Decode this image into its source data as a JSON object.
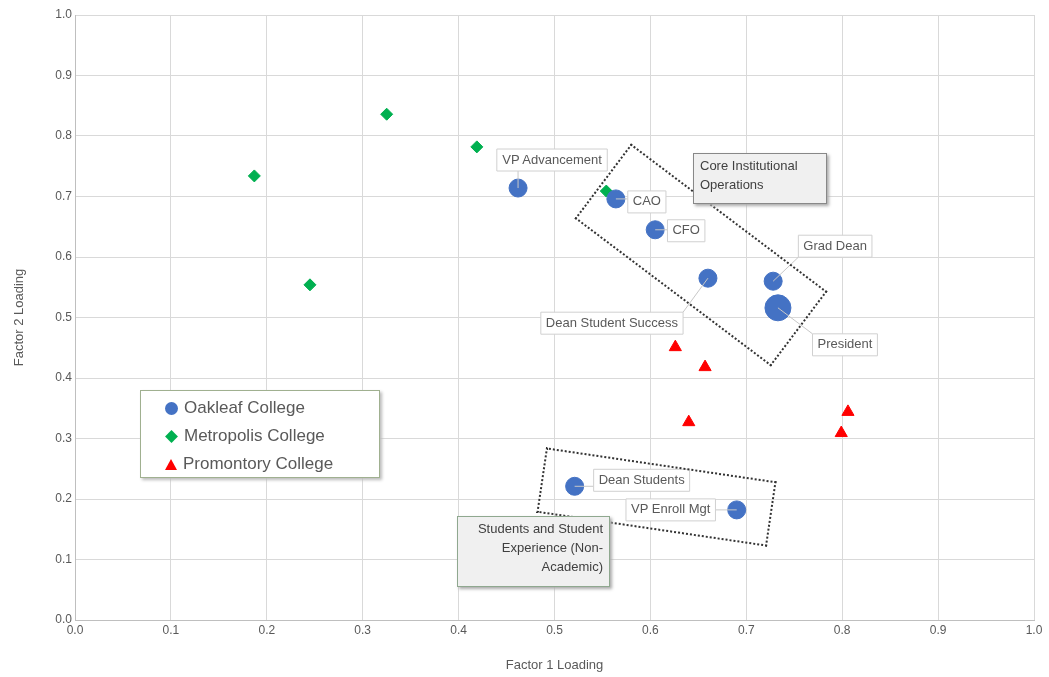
{
  "chart_data": {
    "type": "scatter",
    "xlabel": "Factor 1 Loading",
    "ylabel": "Factor 2 Loading",
    "xlim": [
      0,
      1
    ],
    "ylim": [
      0,
      1
    ],
    "xticks": [
      {
        "value": 0,
        "label": "0.0"
      },
      0.1,
      0.2,
      0.3,
      0.4,
      0.5,
      0.6,
      0.7,
      0.8,
      0.9,
      {
        "value": 1,
        "label": "1.0"
      }
    ],
    "yticks": [
      {
        "value": 0,
        "label": "0.0"
      },
      0.1,
      0.2,
      0.3,
      0.4,
      0.5,
      0.6,
      0.7,
      0.8,
      0.9,
      {
        "value": 1,
        "label": "1.0"
      }
    ],
    "grid": true,
    "legend": "left",
    "series": [
      {
        "name": "Oakleaf College",
        "type": "bubble",
        "marker": "circle",
        "color": "#4472c4",
        "x": [
          0.462,
          0.564,
          0.605,
          0.66,
          0.728,
          0.733,
          0.521,
          0.69
        ],
        "values": [
          0.714,
          0.696,
          0.645,
          0.565,
          0.56,
          0.516,
          0.221,
          0.182
        ],
        "sizes": [
          0.48,
          0.48,
          0.48,
          0.48,
          0.48,
          1,
          0.48,
          0.48
        ]
      },
      {
        "name": "Metropolis College",
        "marker": "diamond",
        "color": "#00b050",
        "x": [
          0.187,
          0.245,
          0.325,
          0.419,
          0.554
        ],
        "values": [
          0.734,
          0.554,
          0.836,
          0.782,
          0.709
        ]
      },
      {
        "name": "Promontory College",
        "marker": "triangle",
        "color": "#ff0000",
        "x": [
          0.626,
          0.657,
          0.64,
          0.806,
          0.799
        ],
        "values": [
          0.451,
          0.418,
          0.327,
          0.344,
          0.309
        ]
      }
    ],
    "annotations": [
      {
        "text": "VP Advancement",
        "x": 0.462,
        "y": 0.714
      },
      {
        "text": "CAO",
        "x": 0.564,
        "y": 0.696
      },
      {
        "text": "CFO",
        "x": 0.605,
        "y": 0.645
      },
      {
        "text": "Dean Student Success",
        "x": 0.66,
        "y": 0.565
      },
      {
        "text": "Grad Dean",
        "x": 0.728,
        "y": 0.56
      },
      {
        "text": "President",
        "x": 0.733,
        "y": 0.516
      },
      {
        "text": "Dean Students",
        "x": 0.521,
        "y": 0.221
      },
      {
        "text": "VP Enroll Mgt",
        "x": 0.69,
        "y": 0.182
      },
      "Core Institutional Operations",
      "Students and Student Experience (Non-Academic)"
    ]
  }
}
